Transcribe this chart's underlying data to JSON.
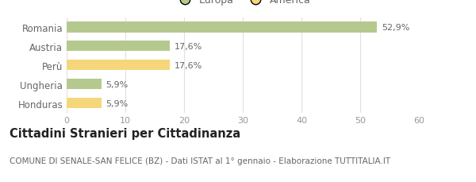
{
  "categories": [
    "Romania",
    "Austria",
    "Perù",
    "Ungheria",
    "Honduras"
  ],
  "values": [
    52.9,
    17.6,
    17.6,
    5.9,
    5.9
  ],
  "labels": [
    "52,9%",
    "17,6%",
    "17,6%",
    "5,9%",
    "5,9%"
  ],
  "colors": [
    "#b5c98e",
    "#b5c98e",
    "#f5d67a",
    "#b5c98e",
    "#f5d67a"
  ],
  "legend_labels": [
    "Europa",
    "America"
  ],
  "legend_colors": [
    "#b5c98e",
    "#f5d67a"
  ],
  "xlim": [
    0,
    60
  ],
  "xticks": [
    0,
    10,
    20,
    30,
    40,
    50,
    60
  ],
  "title": "Cittadini Stranieri per Cittadinanza",
  "subtitle": "COMUNE DI SENALE-SAN FELICE (BZ) - Dati ISTAT al 1° gennaio - Elaborazione TUTTITALIA.IT",
  "bar_height": 0.55,
  "background_color": "#ffffff",
  "grid_color": "#e0e0e0",
  "label_fontsize": 8.5,
  "tick_fontsize": 8,
  "title_fontsize": 10.5,
  "subtitle_fontsize": 7.5,
  "value_label_fontsize": 8,
  "value_label_color": "#666666",
  "ytick_color": "#666666",
  "xtick_color": "#999999"
}
